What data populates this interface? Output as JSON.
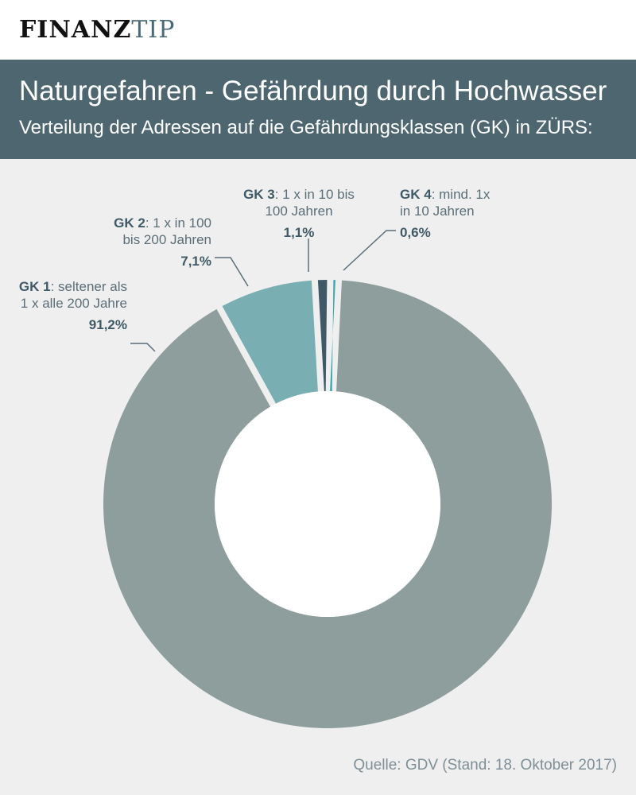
{
  "brand": {
    "part1": "FINANZ",
    "part2": "TIP"
  },
  "header": {
    "title": "Naturgefahren - Gefährdung durch Hochwasser",
    "subtitle": "Verteilung der Adressen auf die Gefährdungsklassen (GK) in ZÜRS:"
  },
  "chart_data": {
    "type": "pie",
    "title": "Naturgefahren - Gefährdung durch Hochwasser",
    "subtitle": "Verteilung der Adressen auf die Gefährdungsklassen (GK) in ZÜRS:",
    "slices": [
      {
        "id": "GK 1",
        "desc": ": seltener als 1 x alle 200 Jahre",
        "value": 91.2,
        "label": "91,2%",
        "color": "#8d9e9c"
      },
      {
        "id": "GK 2",
        "desc": ": 1 x in 100 bis 200 Jahren",
        "value": 7.1,
        "label": "7,1%",
        "color": "#79afb3"
      },
      {
        "id": "GK 3",
        "desc": ": 1 x in 10 bis 100 Jahren",
        "value": 1.1,
        "label": "1,1%",
        "color": "#3f5a66"
      },
      {
        "id": "GK 4",
        "desc": ": mind. 1x in 10 Jahren",
        "value": 0.6,
        "label": "0,6%",
        "color": "#3aa8ae"
      }
    ],
    "source": "Quelle: GDV (Stand: 18. Oktober 2017)"
  }
}
